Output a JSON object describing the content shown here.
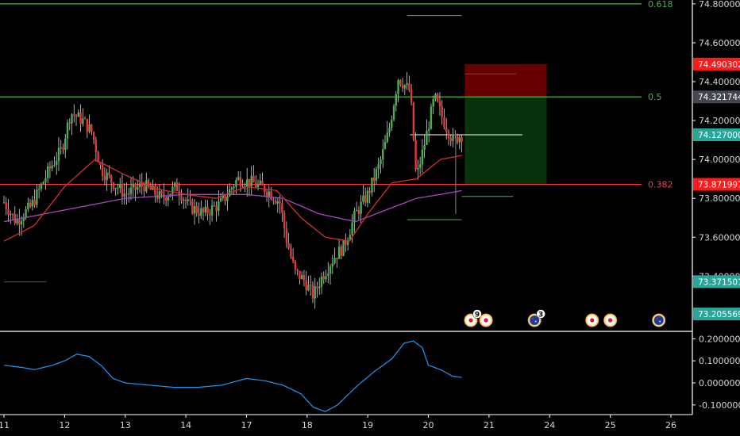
{
  "colors": {
    "background": "#000000",
    "up": "#26a69a",
    "down": "#ef5350",
    "up_candle": "#4caf50",
    "down_candle": "#e53935",
    "fib_green": "#4caf50",
    "fib_red": "#ff3b30",
    "ma_red": "#d32f2f",
    "ma_purple": "#ab47bc",
    "oscillator": "#2196f3",
    "axis_text": "#d1d4dc",
    "pane_border": "#ffffff"
  },
  "chart_data": [
    {
      "type": "candlestick",
      "price_axis": {
        "ylim": [
          73.12,
          74.82
        ],
        "ticks": [
          "74.800000",
          "74.600000",
          "74.400000",
          "74.200000",
          "74.000000",
          "73.800000",
          "73.600000",
          "73.400000"
        ],
        "badges": [
          {
            "label": "74.490302",
            "value": 74.490302,
            "color": "#ff1a1a",
            "text_color": "#ffffff"
          },
          {
            "label": "74.321744",
            "value": 74.321744,
            "color": "#434651",
            "text_color": "#ffffff"
          },
          {
            "label": "74.127000",
            "value": 74.127,
            "color": "#26a69a",
            "text_color": "#ffffff"
          },
          {
            "label": "73.871997",
            "value": 73.871997,
            "color": "#ff1a1a",
            "text_color": "#ffffff"
          },
          {
            "label": "73.371501",
            "value": 73.371501,
            "color": "#26a69a",
            "text_color": "#ffffff"
          },
          {
            "label": "73.205569",
            "value": 73.205569,
            "color": "#26a69a",
            "text_color": "#ffffff"
          }
        ]
      },
      "x_axis": {
        "ticks": [
          {
            "label": "11",
            "t": 0
          },
          {
            "label": "12",
            "t": 1
          },
          {
            "label": "13",
            "t": 2
          },
          {
            "label": "14",
            "t": 3
          },
          {
            "label": "17",
            "t": 4
          },
          {
            "label": "18",
            "t": 5
          },
          {
            "label": "19",
            "t": 6
          },
          {
            "label": "20",
            "t": 7
          },
          {
            "label": "21",
            "t": 8
          },
          {
            "label": "24",
            "t": 9
          },
          {
            "label": "25",
            "t": 10
          },
          {
            "label": "26",
            "t": 11
          }
        ],
        "t_range": [
          -0.05,
          11.1
        ]
      },
      "fib_levels": [
        {
          "label": "0.618",
          "value": 74.8,
          "color": "#4caf50"
        },
        {
          "label": "0.5",
          "value": 74.321744,
          "color": "#4caf50"
        },
        {
          "label": "0.382",
          "value": 73.871997,
          "color": "#ff3b30"
        }
      ],
      "position_tool": {
        "t_start": 7.6,
        "t_end": 8.95,
        "entry": 74.321744,
        "stop": 74.490302,
        "target": 73.871997
      },
      "price_series_keypoints": [
        [
          0.0,
          73.78
        ],
        [
          0.2,
          73.68
        ],
        [
          0.45,
          73.76
        ],
        [
          0.75,
          73.95
        ],
        [
          0.95,
          74.05
        ],
        [
          1.1,
          74.24
        ],
        [
          1.3,
          74.2
        ],
        [
          1.45,
          74.14
        ],
        [
          1.6,
          73.95
        ],
        [
          1.8,
          73.88
        ],
        [
          2.0,
          73.82
        ],
        [
          2.3,
          73.87
        ],
        [
          2.6,
          73.8
        ],
        [
          2.85,
          73.86
        ],
        [
          3.05,
          73.76
        ],
        [
          3.3,
          73.72
        ],
        [
          3.6,
          73.78
        ],
        [
          3.85,
          73.9
        ],
        [
          4.1,
          73.88
        ],
        [
          4.35,
          73.84
        ],
        [
          4.55,
          73.78
        ],
        [
          4.65,
          73.6
        ],
        [
          4.8,
          73.42
        ],
        [
          4.95,
          73.38
        ],
        [
          5.1,
          73.3
        ],
        [
          5.25,
          73.4
        ],
        [
          5.45,
          73.5
        ],
        [
          5.6,
          73.55
        ],
        [
          5.8,
          73.72
        ],
        [
          6.0,
          73.82
        ],
        [
          6.2,
          73.98
        ],
        [
          6.35,
          74.15
        ],
        [
          6.5,
          74.42
        ],
        [
          6.7,
          74.35
        ],
        [
          6.8,
          73.9
        ],
        [
          6.95,
          74.1
        ],
        [
          7.1,
          74.32
        ],
        [
          7.25,
          74.2
        ],
        [
          7.4,
          74.1
        ],
        [
          7.55,
          74.127
        ]
      ],
      "ma_fast_keypoints": [
        [
          0.0,
          73.58
        ],
        [
          0.5,
          73.66
        ],
        [
          1.0,
          73.86
        ],
        [
          1.5,
          74.0
        ],
        [
          2.0,
          73.92
        ],
        [
          2.5,
          73.85
        ],
        [
          3.0,
          73.82
        ],
        [
          3.5,
          73.8
        ],
        [
          4.0,
          73.86
        ],
        [
          4.5,
          73.84
        ],
        [
          4.9,
          73.7
        ],
        [
          5.3,
          73.6
        ],
        [
          5.7,
          73.58
        ],
        [
          6.0,
          73.72
        ],
        [
          6.4,
          73.88
        ],
        [
          6.8,
          73.9
        ],
        [
          7.2,
          74.0
        ],
        [
          7.55,
          74.02
        ]
      ],
      "ma_slow_keypoints": [
        [
          0.0,
          73.68
        ],
        [
          1.0,
          73.74
        ],
        [
          2.0,
          73.8
        ],
        [
          3.0,
          73.82
        ],
        [
          4.0,
          73.82
        ],
        [
          4.6,
          73.8
        ],
        [
          5.2,
          73.72
        ],
        [
          5.8,
          73.68
        ],
        [
          6.3,
          73.74
        ],
        [
          6.8,
          73.8
        ],
        [
          7.2,
          73.82
        ],
        [
          7.55,
          73.84
        ]
      ]
    },
    {
      "type": "line",
      "name": "oscillator",
      "y_axis": {
        "ylim": [
          -0.14,
          0.23
        ],
        "ticks": [
          "0.200000",
          "0.100000",
          "0.000000",
          "-0.100000"
        ]
      },
      "series_keypoints": [
        [
          0.0,
          0.08
        ],
        [
          0.3,
          0.07
        ],
        [
          0.5,
          0.06
        ],
        [
          0.8,
          0.08
        ],
        [
          1.0,
          0.1
        ],
        [
          1.2,
          0.13
        ],
        [
          1.4,
          0.12
        ],
        [
          1.6,
          0.08
        ],
        [
          1.8,
          0.02
        ],
        [
          2.0,
          0.0
        ],
        [
          2.4,
          -0.01
        ],
        [
          2.8,
          -0.02
        ],
        [
          3.2,
          -0.02
        ],
        [
          3.6,
          -0.01
        ],
        [
          4.0,
          0.02
        ],
        [
          4.3,
          0.01
        ],
        [
          4.6,
          -0.01
        ],
        [
          4.9,
          -0.05
        ],
        [
          5.1,
          -0.11
        ],
        [
          5.3,
          -0.13
        ],
        [
          5.5,
          -0.1
        ],
        [
          5.8,
          -0.02
        ],
        [
          6.1,
          0.05
        ],
        [
          6.4,
          0.11
        ],
        [
          6.6,
          0.18
        ],
        [
          6.75,
          0.19
        ],
        [
          6.9,
          0.16
        ],
        [
          7.0,
          0.08
        ],
        [
          7.2,
          0.06
        ],
        [
          7.4,
          0.03
        ],
        [
          7.55,
          0.025
        ]
      ]
    }
  ],
  "events": [
    {
      "t": 7.7,
      "icon": "japan-flag-icon",
      "count": "9"
    },
    {
      "t": 7.95,
      "icon": "japan-flag-icon",
      "count": ""
    },
    {
      "t": 8.75,
      "icon": "australia-flag-icon",
      "count": "3"
    },
    {
      "t": 9.7,
      "icon": "japan-flag-icon",
      "count": ""
    },
    {
      "t": 10.0,
      "icon": "japan-flag-icon",
      "count": ""
    },
    {
      "t": 10.8,
      "icon": "australia-flag-icon",
      "count": ""
    }
  ]
}
